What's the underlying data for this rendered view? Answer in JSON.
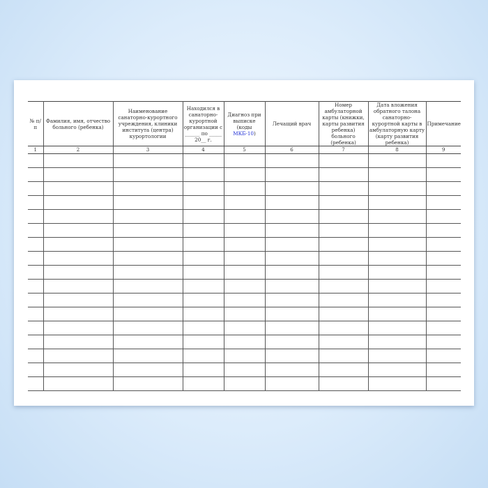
{
  "columns": [
    {
      "label": "№ п/п",
      "num": "1"
    },
    {
      "label": "Фамилия, имя, отчество больного (ребенка)",
      "num": "2"
    },
    {
      "label": "Наименование санаторно-курортного учреждения, клиники института (центра) курортологии",
      "num": "3"
    },
    {
      "label": "Находился в санаторно-курортной организации с ______ по _____ 20__ г.",
      "num": "4"
    },
    {
      "label": "Диагноз при выписке (коды ",
      "link": "МКБ-10",
      "suffix": ")",
      "num": "5"
    },
    {
      "label": "Лечащий врач",
      "num": "6"
    },
    {
      "label": "Номер амбулаторной карты (книжки, карты развития ребенка) больного (ребенка)",
      "num": "7"
    },
    {
      "label": "Дата вложения обратного талона санаторно-курортной карты в амбулаторную карту (карту развития ребенка)",
      "num": "8"
    },
    {
      "label": "Примечание",
      "num": "9"
    }
  ],
  "colors": {
    "link": "#2433d6",
    "lines": "#555555"
  }
}
